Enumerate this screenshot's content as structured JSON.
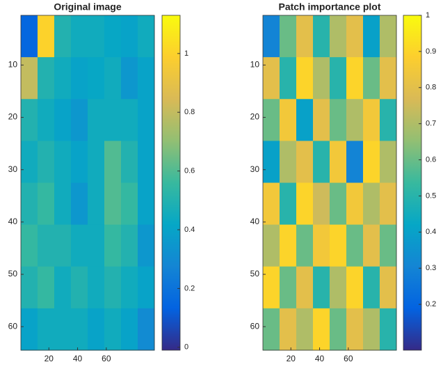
{
  "chart_data": [
    {
      "type": "heatmap",
      "title": "Original image",
      "colormap": [
        "#352a87",
        "#0363e1",
        "#1485d4",
        "#06a7c6",
        "#38b99e",
        "#92bf73",
        "#d9ba56",
        "#fcce2e",
        "#f9fb0e"
      ],
      "xlim": [
        0.5,
        93.5
      ],
      "ylim": [
        0.5,
        64.5
      ],
      "xticks": [
        20,
        40,
        60
      ],
      "yticks": [
        10,
        20,
        30,
        40,
        50,
        60
      ],
      "clim": [
        -0.01,
        1.13
      ],
      "cticks": [
        0,
        0.2,
        0.4,
        0.6,
        0.8,
        1
      ],
      "z": [
        [
          0.15,
          1.0,
          0.5,
          0.45,
          0.45,
          0.42,
          0.4,
          0.45
        ],
        [
          0.8,
          0.5,
          0.45,
          0.4,
          0.42,
          0.45,
          0.35,
          0.4
        ],
        [
          0.5,
          0.45,
          0.4,
          0.35,
          0.45,
          0.45,
          0.45,
          0.4
        ],
        [
          0.45,
          0.5,
          0.45,
          0.4,
          0.45,
          0.6,
          0.5,
          0.4
        ],
        [
          0.5,
          0.55,
          0.45,
          0.35,
          0.45,
          0.6,
          0.55,
          0.4
        ],
        [
          0.55,
          0.5,
          0.5,
          0.45,
          0.45,
          0.55,
          0.5,
          0.35
        ],
        [
          0.5,
          0.55,
          0.45,
          0.5,
          0.45,
          0.5,
          0.45,
          0.4
        ],
        [
          0.4,
          0.45,
          0.45,
          0.45,
          0.4,
          0.45,
          0.4,
          0.3
        ]
      ]
    },
    {
      "type": "heatmap",
      "title": "Patch importance plot",
      "colormap": [
        "#352a87",
        "#0363e1",
        "#1485d4",
        "#06a7c6",
        "#38b99e",
        "#92bf73",
        "#d9ba56",
        "#fcce2e",
        "#f9fb0e"
      ],
      "xlim": [
        0.5,
        93.5
      ],
      "ylim": [
        0.5,
        64.5
      ],
      "xticks": [
        20,
        40,
        60
      ],
      "yticks": [
        10,
        20,
        30,
        40,
        50,
        60
      ],
      "clim": [
        0.073,
        1
      ],
      "cticks": [
        0.2,
        0.3,
        0.4,
        0.5,
        0.6,
        0.7,
        0.8,
        0.9,
        1
      ],
      "z": [
        [
          0.3,
          0.6,
          0.8,
          0.5,
          0.7,
          0.8,
          0.4,
          0.7
        ],
        [
          0.8,
          0.5,
          0.9,
          0.7,
          0.5,
          0.9,
          0.6,
          0.8
        ],
        [
          0.6,
          0.85,
          0.4,
          0.8,
          0.6,
          0.7,
          0.85,
          0.5
        ],
        [
          0.4,
          0.7,
          0.8,
          0.5,
          0.85,
          0.3,
          0.9,
          0.7
        ],
        [
          0.85,
          0.5,
          0.9,
          0.75,
          0.6,
          0.85,
          0.7,
          0.8
        ],
        [
          0.7,
          0.9,
          0.6,
          0.85,
          0.9,
          0.6,
          0.8,
          0.6
        ],
        [
          0.9,
          0.6,
          0.8,
          0.5,
          0.7,
          0.9,
          0.5,
          0.8
        ],
        [
          0.6,
          0.8,
          0.7,
          0.9,
          0.6,
          0.8,
          0.7,
          0.5
        ]
      ]
    }
  ]
}
